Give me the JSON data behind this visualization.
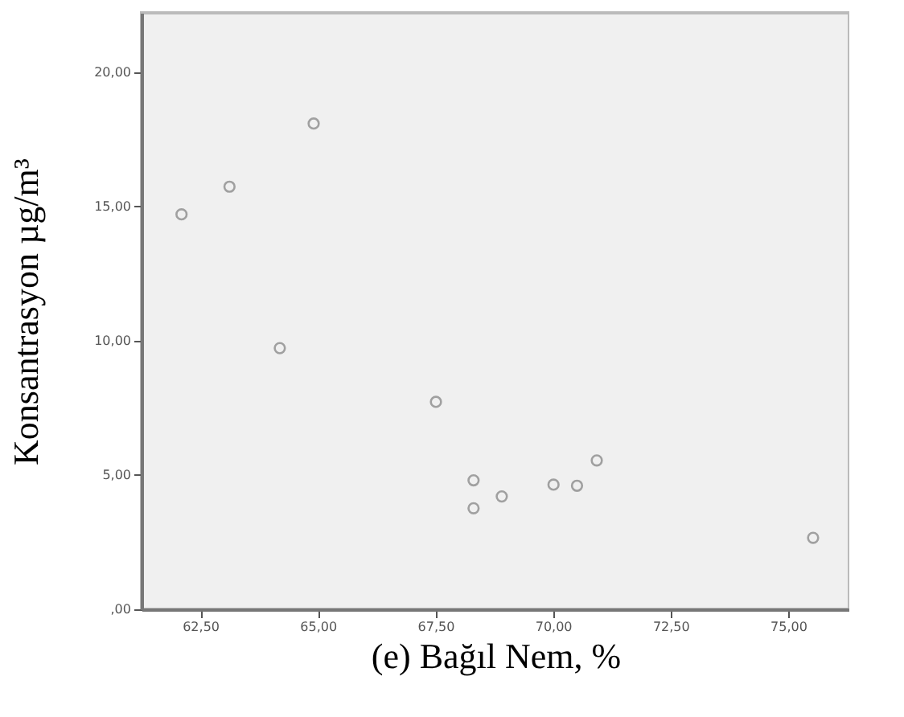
{
  "chart_data": {
    "type": "scatter",
    "xlabel": "(e) Bağıl Nem, %",
    "ylabel": "Konsantrasyon µg/m³",
    "x": [
      62.1,
      63.12,
      64.91,
      64.19,
      67.51,
      68.31,
      68.31,
      68.91,
      70.01,
      70.51,
      70.93,
      75.53
    ],
    "series": [
      {
        "color": "#7f7f7f",
        "values": [
          14.7,
          15.73,
          18.08,
          9.72,
          7.72,
          4.8,
          3.76,
          4.2,
          4.64,
          4.6,
          5.54,
          2.66
        ]
      }
    ],
    "xlim": [
      61.25,
      76.3
    ],
    "ylim": [
      0,
      22.2
    ],
    "xticks": [
      {
        "value": 62.5,
        "label": "62,50"
      },
      {
        "value": 65,
        "label": "65,00"
      },
      {
        "value": 67.5,
        "label": "67,50"
      },
      {
        "value": 70,
        "label": "70,00"
      },
      {
        "value": 72.5,
        "label": "72,50"
      },
      {
        "value": 75,
        "label": "75,00"
      }
    ],
    "yticks": [
      {
        "value": 0,
        "label": ",00"
      },
      {
        "value": 5,
        "label": "5,00"
      },
      {
        "value": 10,
        "label": "10,00"
      },
      {
        "value": 15,
        "label": "15,00"
      },
      {
        "value": 20,
        "label": "20,00"
      }
    ],
    "grid": false,
    "marker": "circle"
  }
}
